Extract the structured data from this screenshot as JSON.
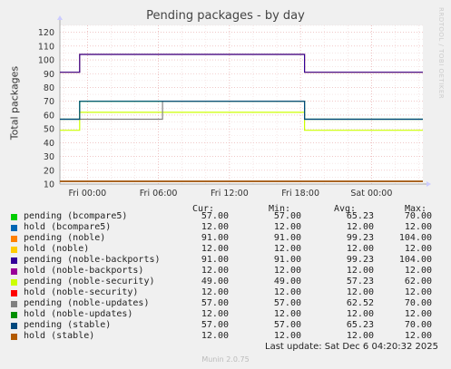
{
  "title": "Pending packages - by day",
  "side_label": "RRDTOOL / TOBI OETIKER",
  "chart_data": {
    "type": "line",
    "title": "Pending packages - by day",
    "ylabel": "Total packages",
    "ylim": [
      10,
      125
    ],
    "yticks": [
      10,
      20,
      30,
      40,
      50,
      60,
      70,
      80,
      90,
      100,
      110,
      120
    ],
    "x_ticks": [
      "Fri 00:00",
      "Fri 06:00",
      "Fri 12:00",
      "Fri 18:00",
      "Sat 00:00"
    ],
    "x_unit": "hours since Thu 21:40",
    "x_range": [
      0,
      30.67
    ],
    "grid": true,
    "series": [
      {
        "name": "pending (bcompare5)",
        "color": "#00cc00",
        "points": [
          [
            0,
            57
          ],
          [
            1.67,
            57
          ],
          [
            1.67,
            70
          ],
          [
            20.67,
            70
          ],
          [
            20.67,
            57
          ],
          [
            30.67,
            57
          ]
        ]
      },
      {
        "name": "hold (bcompare5)",
        "color": "#0066b3",
        "points": [
          [
            0,
            12
          ],
          [
            30.67,
            12
          ]
        ]
      },
      {
        "name": "pending (noble)",
        "color": "#ff8000",
        "points": [
          [
            0,
            91
          ],
          [
            1.67,
            91
          ],
          [
            1.67,
            104
          ],
          [
            20.67,
            104
          ],
          [
            20.67,
            91
          ],
          [
            30.67,
            91
          ]
        ]
      },
      {
        "name": "hold (noble)",
        "color": "#ffcc00",
        "points": [
          [
            0,
            12
          ],
          [
            30.67,
            12
          ]
        ]
      },
      {
        "name": "pending (noble-backports)",
        "color": "#330099",
        "points": [
          [
            0,
            91
          ],
          [
            1.67,
            91
          ],
          [
            1.67,
            104
          ],
          [
            20.67,
            104
          ],
          [
            20.67,
            91
          ],
          [
            30.67,
            91
          ]
        ]
      },
      {
        "name": "hold (noble-backports)",
        "color": "#990099",
        "points": [
          [
            0,
            12
          ],
          [
            30.67,
            12
          ]
        ]
      },
      {
        "name": "pending (noble-security)",
        "color": "#ccff00",
        "points": [
          [
            0,
            49
          ],
          [
            1.67,
            49
          ],
          [
            1.67,
            62
          ],
          [
            20.67,
            62
          ],
          [
            20.67,
            49
          ],
          [
            30.67,
            49
          ]
        ]
      },
      {
        "name": "hold (noble-security)",
        "color": "#ff0000",
        "points": [
          [
            0,
            12
          ],
          [
            30.67,
            12
          ]
        ]
      },
      {
        "name": "pending (noble-updates)",
        "color": "#808080",
        "points": [
          [
            0,
            57
          ],
          [
            1.67,
            57
          ],
          [
            1.67,
            57
          ],
          [
            8.67,
            57
          ],
          [
            8.67,
            70
          ],
          [
            20.67,
            70
          ],
          [
            20.67,
            57
          ],
          [
            30.67,
            57
          ]
        ]
      },
      {
        "name": "hold (noble-updates)",
        "color": "#008f00",
        "points": [
          [
            0,
            12
          ],
          [
            30.67,
            12
          ]
        ]
      },
      {
        "name": "pending (stable)",
        "color": "#00487d",
        "points": [
          [
            0,
            57
          ],
          [
            1.67,
            57
          ],
          [
            1.67,
            70
          ],
          [
            20.67,
            70
          ],
          [
            20.67,
            57
          ],
          [
            30.67,
            57
          ]
        ]
      },
      {
        "name": "hold (stable)",
        "color": "#b35a00",
        "points": [
          [
            0,
            12
          ],
          [
            30.67,
            12
          ]
        ]
      }
    ]
  },
  "legend": {
    "headers": [
      "Cur:",
      "Min:",
      "Avg:",
      "Max:"
    ],
    "rows": [
      {
        "label": "pending (bcompare5)",
        "color": "#00cc00",
        "cur": "57.00",
        "min": "57.00",
        "avg": "65.23",
        "max": "70.00"
      },
      {
        "label": "hold (bcompare5)",
        "color": "#0066b3",
        "cur": "12.00",
        "min": "12.00",
        "avg": "12.00",
        "max": "12.00"
      },
      {
        "label": "pending (noble)",
        "color": "#ff8000",
        "cur": "91.00",
        "min": "91.00",
        "avg": "99.23",
        "max": "104.00"
      },
      {
        "label": "hold (noble)",
        "color": "#ffcc00",
        "cur": "12.00",
        "min": "12.00",
        "avg": "12.00",
        "max": "12.00"
      },
      {
        "label": "pending (noble-backports)",
        "color": "#330099",
        "cur": "91.00",
        "min": "91.00",
        "avg": "99.23",
        "max": "104.00"
      },
      {
        "label": "hold (noble-backports)",
        "color": "#990099",
        "cur": "12.00",
        "min": "12.00",
        "avg": "12.00",
        "max": "12.00"
      },
      {
        "label": "pending (noble-security)",
        "color": "#ccff00",
        "cur": "49.00",
        "min": "49.00",
        "avg": "57.23",
        "max": "62.00"
      },
      {
        "label": "hold (noble-security)",
        "color": "#ff0000",
        "cur": "12.00",
        "min": "12.00",
        "avg": "12.00",
        "max": "12.00"
      },
      {
        "label": "pending (noble-updates)",
        "color": "#808080",
        "cur": "57.00",
        "min": "57.00",
        "avg": "62.52",
        "max": "70.00"
      },
      {
        "label": "hold (noble-updates)",
        "color": "#008f00",
        "cur": "12.00",
        "min": "12.00",
        "avg": "12.00",
        "max": "12.00"
      },
      {
        "label": "pending (stable)",
        "color": "#00487d",
        "cur": "57.00",
        "min": "57.00",
        "avg": "65.23",
        "max": "70.00"
      },
      {
        "label": "hold (stable)",
        "color": "#b35a00",
        "cur": "12.00",
        "min": "12.00",
        "avg": "12.00",
        "max": "12.00"
      }
    ]
  },
  "last_update": "Last update: Sat Dec  6 04:20:32 2025",
  "footer": "Munin 2.0.75"
}
